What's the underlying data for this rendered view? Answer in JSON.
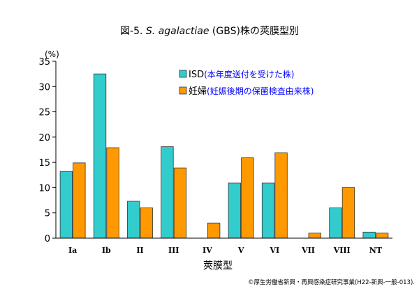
{
  "chart_data": {
    "type": "bar",
    "title_prefix": "図-5. ",
    "title_italic": "S. agalactiae",
    "title_suffix": " (GBS)株の莢膜型別",
    "xlabel": "莢膜型",
    "ylabel": "(%)",
    "ylim": [
      0,
      35
    ],
    "yticks": [
      "0",
      "5",
      "10",
      "15",
      "20",
      "25",
      "30",
      "35"
    ],
    "ytick_values": [
      0,
      5,
      10,
      15,
      20,
      25,
      30,
      35
    ],
    "categories": [
      "Ia",
      "Ib",
      "II",
      "III",
      "IV",
      "V",
      "VI",
      "VII",
      "VIII",
      "NT"
    ],
    "legend_position": "top-center",
    "series": [
      {
        "name": "ISD",
        "note": "(本年度送付を受けた株)",
        "color": "#33CCCC",
        "values": [
          13.2,
          32.5,
          7.3,
          18.1,
          0,
          10.9,
          10.9,
          0,
          6.0,
          1.2
        ]
      },
      {
        "name": "妊婦",
        "note": "(妊娠後期の保菌検査由来株)",
        "color": "#FF9900",
        "values": [
          14.9,
          17.9,
          6.0,
          13.9,
          3.0,
          15.9,
          16.9,
          1.0,
          10.0,
          1.0
        ]
      }
    ],
    "grid": false
  },
  "source_note": "©厚生労働省新興・再興感染症研究事業(H22-新興-一般-013)."
}
